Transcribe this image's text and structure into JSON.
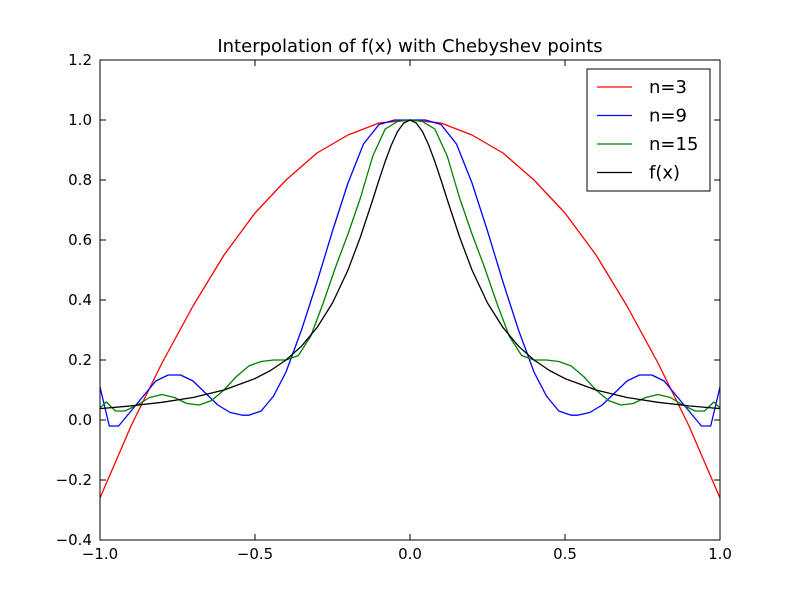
{
  "chart_data": {
    "type": "line",
    "title": "Interpolation of f(x) with Chebyshev points",
    "xlabel": "",
    "ylabel": "",
    "xlim": [
      -1.0,
      1.0
    ],
    "ylim": [
      -0.4,
      1.2
    ],
    "xticks": [
      -1.0,
      -0.5,
      0.0,
      0.5,
      1.0
    ],
    "xtick_labels": [
      "−1.0",
      "−0.5",
      "0.0",
      "0.5",
      "1.0"
    ],
    "yticks": [
      -0.4,
      -0.2,
      0.0,
      0.2,
      0.4,
      0.6,
      0.8,
      1.0,
      1.2
    ],
    "ytick_labels": [
      "−0.4",
      "−0.2",
      "0.0",
      "0.2",
      "0.4",
      "0.6",
      "0.8",
      "1.0",
      "1.2"
    ],
    "grid": false,
    "legend_position": "top-right",
    "series": [
      {
        "name": "n=3",
        "color": "#ff0000",
        "x": [
          -1.0,
          -0.9,
          -0.8,
          -0.7,
          -0.6,
          -0.5,
          -0.4,
          -0.3,
          -0.2,
          -0.1,
          0.0,
          0.1,
          0.2,
          0.3,
          0.4,
          0.5,
          0.6,
          0.7,
          0.8,
          0.9,
          1.0
        ],
        "y": [
          -0.26,
          -0.02,
          0.19,
          0.38,
          0.55,
          0.69,
          0.8,
          0.89,
          0.95,
          0.99,
          1.0,
          0.99,
          0.95,
          0.89,
          0.8,
          0.69,
          0.55,
          0.38,
          0.19,
          -0.02,
          -0.26
        ]
      },
      {
        "name": "n=9",
        "color": "#0000ff",
        "x": [
          -1.0,
          -0.97,
          -0.94,
          -0.9,
          -0.86,
          -0.82,
          -0.78,
          -0.74,
          -0.7,
          -0.66,
          -0.62,
          -0.58,
          -0.54,
          -0.52,
          -0.48,
          -0.44,
          -0.4,
          -0.35,
          -0.3,
          -0.25,
          -0.2,
          -0.15,
          -0.1,
          -0.05,
          0.0,
          0.05,
          0.1,
          0.15,
          0.2,
          0.25,
          0.3,
          0.35,
          0.4,
          0.44,
          0.48,
          0.52,
          0.54,
          0.58,
          0.62,
          0.66,
          0.7,
          0.74,
          0.78,
          0.82,
          0.86,
          0.9,
          0.94,
          0.97,
          1.0
        ],
        "y": [
          0.11,
          -0.02,
          -0.02,
          0.03,
          0.08,
          0.13,
          0.15,
          0.15,
          0.13,
          0.09,
          0.05,
          0.025,
          0.016,
          0.016,
          0.03,
          0.08,
          0.16,
          0.3,
          0.46,
          0.63,
          0.79,
          0.92,
          0.985,
          1.0,
          1.0,
          1.0,
          0.985,
          0.92,
          0.79,
          0.63,
          0.46,
          0.3,
          0.16,
          0.08,
          0.03,
          0.016,
          0.016,
          0.025,
          0.05,
          0.09,
          0.13,
          0.15,
          0.15,
          0.13,
          0.08,
          0.03,
          -0.02,
          -0.02,
          0.11
        ]
      },
      {
        "name": "n=15",
        "color": "#008000",
        "x": [
          -1.0,
          -0.98,
          -0.95,
          -0.92,
          -0.88,
          -0.84,
          -0.8,
          -0.76,
          -0.72,
          -0.68,
          -0.64,
          -0.6,
          -0.56,
          -0.52,
          -0.48,
          -0.44,
          -0.4,
          -0.36,
          -0.32,
          -0.28,
          -0.24,
          -0.2,
          -0.16,
          -0.12,
          -0.08,
          -0.04,
          0.0,
          0.04,
          0.08,
          0.12,
          0.16,
          0.2,
          0.24,
          0.28,
          0.32,
          0.36,
          0.4,
          0.44,
          0.48,
          0.52,
          0.56,
          0.6,
          0.64,
          0.68,
          0.72,
          0.76,
          0.8,
          0.84,
          0.88,
          0.92,
          0.95,
          0.98,
          1.0
        ],
        "y": [
          0.04,
          0.06,
          0.03,
          0.03,
          0.05,
          0.075,
          0.085,
          0.075,
          0.055,
          0.05,
          0.065,
          0.1,
          0.145,
          0.18,
          0.195,
          0.2,
          0.2,
          0.215,
          0.28,
          0.39,
          0.51,
          0.62,
          0.74,
          0.88,
          0.97,
          0.995,
          1.0,
          0.995,
          0.97,
          0.88,
          0.74,
          0.62,
          0.51,
          0.39,
          0.28,
          0.215,
          0.2,
          0.2,
          0.195,
          0.18,
          0.145,
          0.1,
          0.065,
          0.05,
          0.055,
          0.075,
          0.085,
          0.075,
          0.05,
          0.03,
          0.03,
          0.06,
          0.04
        ]
      },
      {
        "name": "f(x)",
        "color": "#000000",
        "x": [
          -1.0,
          -0.9,
          -0.8,
          -0.7,
          -0.6,
          -0.5,
          -0.45,
          -0.4,
          -0.35,
          -0.3,
          -0.25,
          -0.2,
          -0.16,
          -0.12,
          -0.1,
          -0.08,
          -0.06,
          -0.04,
          -0.02,
          0.0,
          0.02,
          0.04,
          0.06,
          0.08,
          0.1,
          0.12,
          0.16,
          0.2,
          0.25,
          0.3,
          0.35,
          0.4,
          0.45,
          0.5,
          0.6,
          0.7,
          0.8,
          0.9,
          1.0
        ],
        "y": [
          0.038,
          0.047,
          0.059,
          0.075,
          0.1,
          0.138,
          0.165,
          0.2,
          0.246,
          0.308,
          0.39,
          0.5,
          0.61,
          0.735,
          0.8,
          0.862,
          0.917,
          0.962,
          0.99,
          1.0,
          0.99,
          0.962,
          0.917,
          0.862,
          0.8,
          0.735,
          0.61,
          0.5,
          0.39,
          0.308,
          0.246,
          0.2,
          0.165,
          0.138,
          0.1,
          0.075,
          0.059,
          0.047,
          0.038
        ]
      }
    ]
  }
}
